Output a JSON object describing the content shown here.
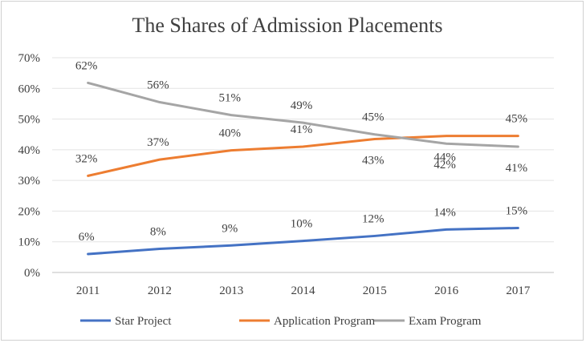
{
  "chart_data": {
    "type": "line",
    "title": "The Shares of Admission Placements",
    "xlabel": "",
    "ylabel": "",
    "categories": [
      "2011",
      "2012",
      "2013",
      "2014",
      "2015",
      "2016",
      "2017"
    ],
    "ylim": [
      0,
      70
    ],
    "yticks": [
      "0%",
      "10%",
      "20%",
      "30%",
      "40%",
      "50%",
      "60%",
      "70%"
    ],
    "grid": true,
    "legend": "bottom",
    "series": [
      {
        "name": "Star Project",
        "color": "#4472C4",
        "values": [
          6,
          7.7,
          8.8,
          10.3,
          11.9,
          14,
          14.5
        ],
        "labels": [
          "6%",
          "8%",
          "9%",
          "10%",
          "12%",
          "14%",
          "15%"
        ]
      },
      {
        "name": "Application Program",
        "color": "#ED7D31",
        "values": [
          31.5,
          36.8,
          39.8,
          41,
          43.5,
          44.5,
          44.5
        ],
        "labels": [
          "32%",
          "37%",
          "40%",
          "41%",
          "43%",
          "44%",
          "45%"
        ]
      },
      {
        "name": "Exam Program",
        "color": "#A5A5A5",
        "values": [
          61.8,
          55.5,
          51.3,
          48.8,
          45,
          42,
          41
        ],
        "labels": [
          "62%",
          "56%",
          "51%",
          "49%",
          "45%",
          "42%",
          "41%"
        ]
      }
    ]
  }
}
